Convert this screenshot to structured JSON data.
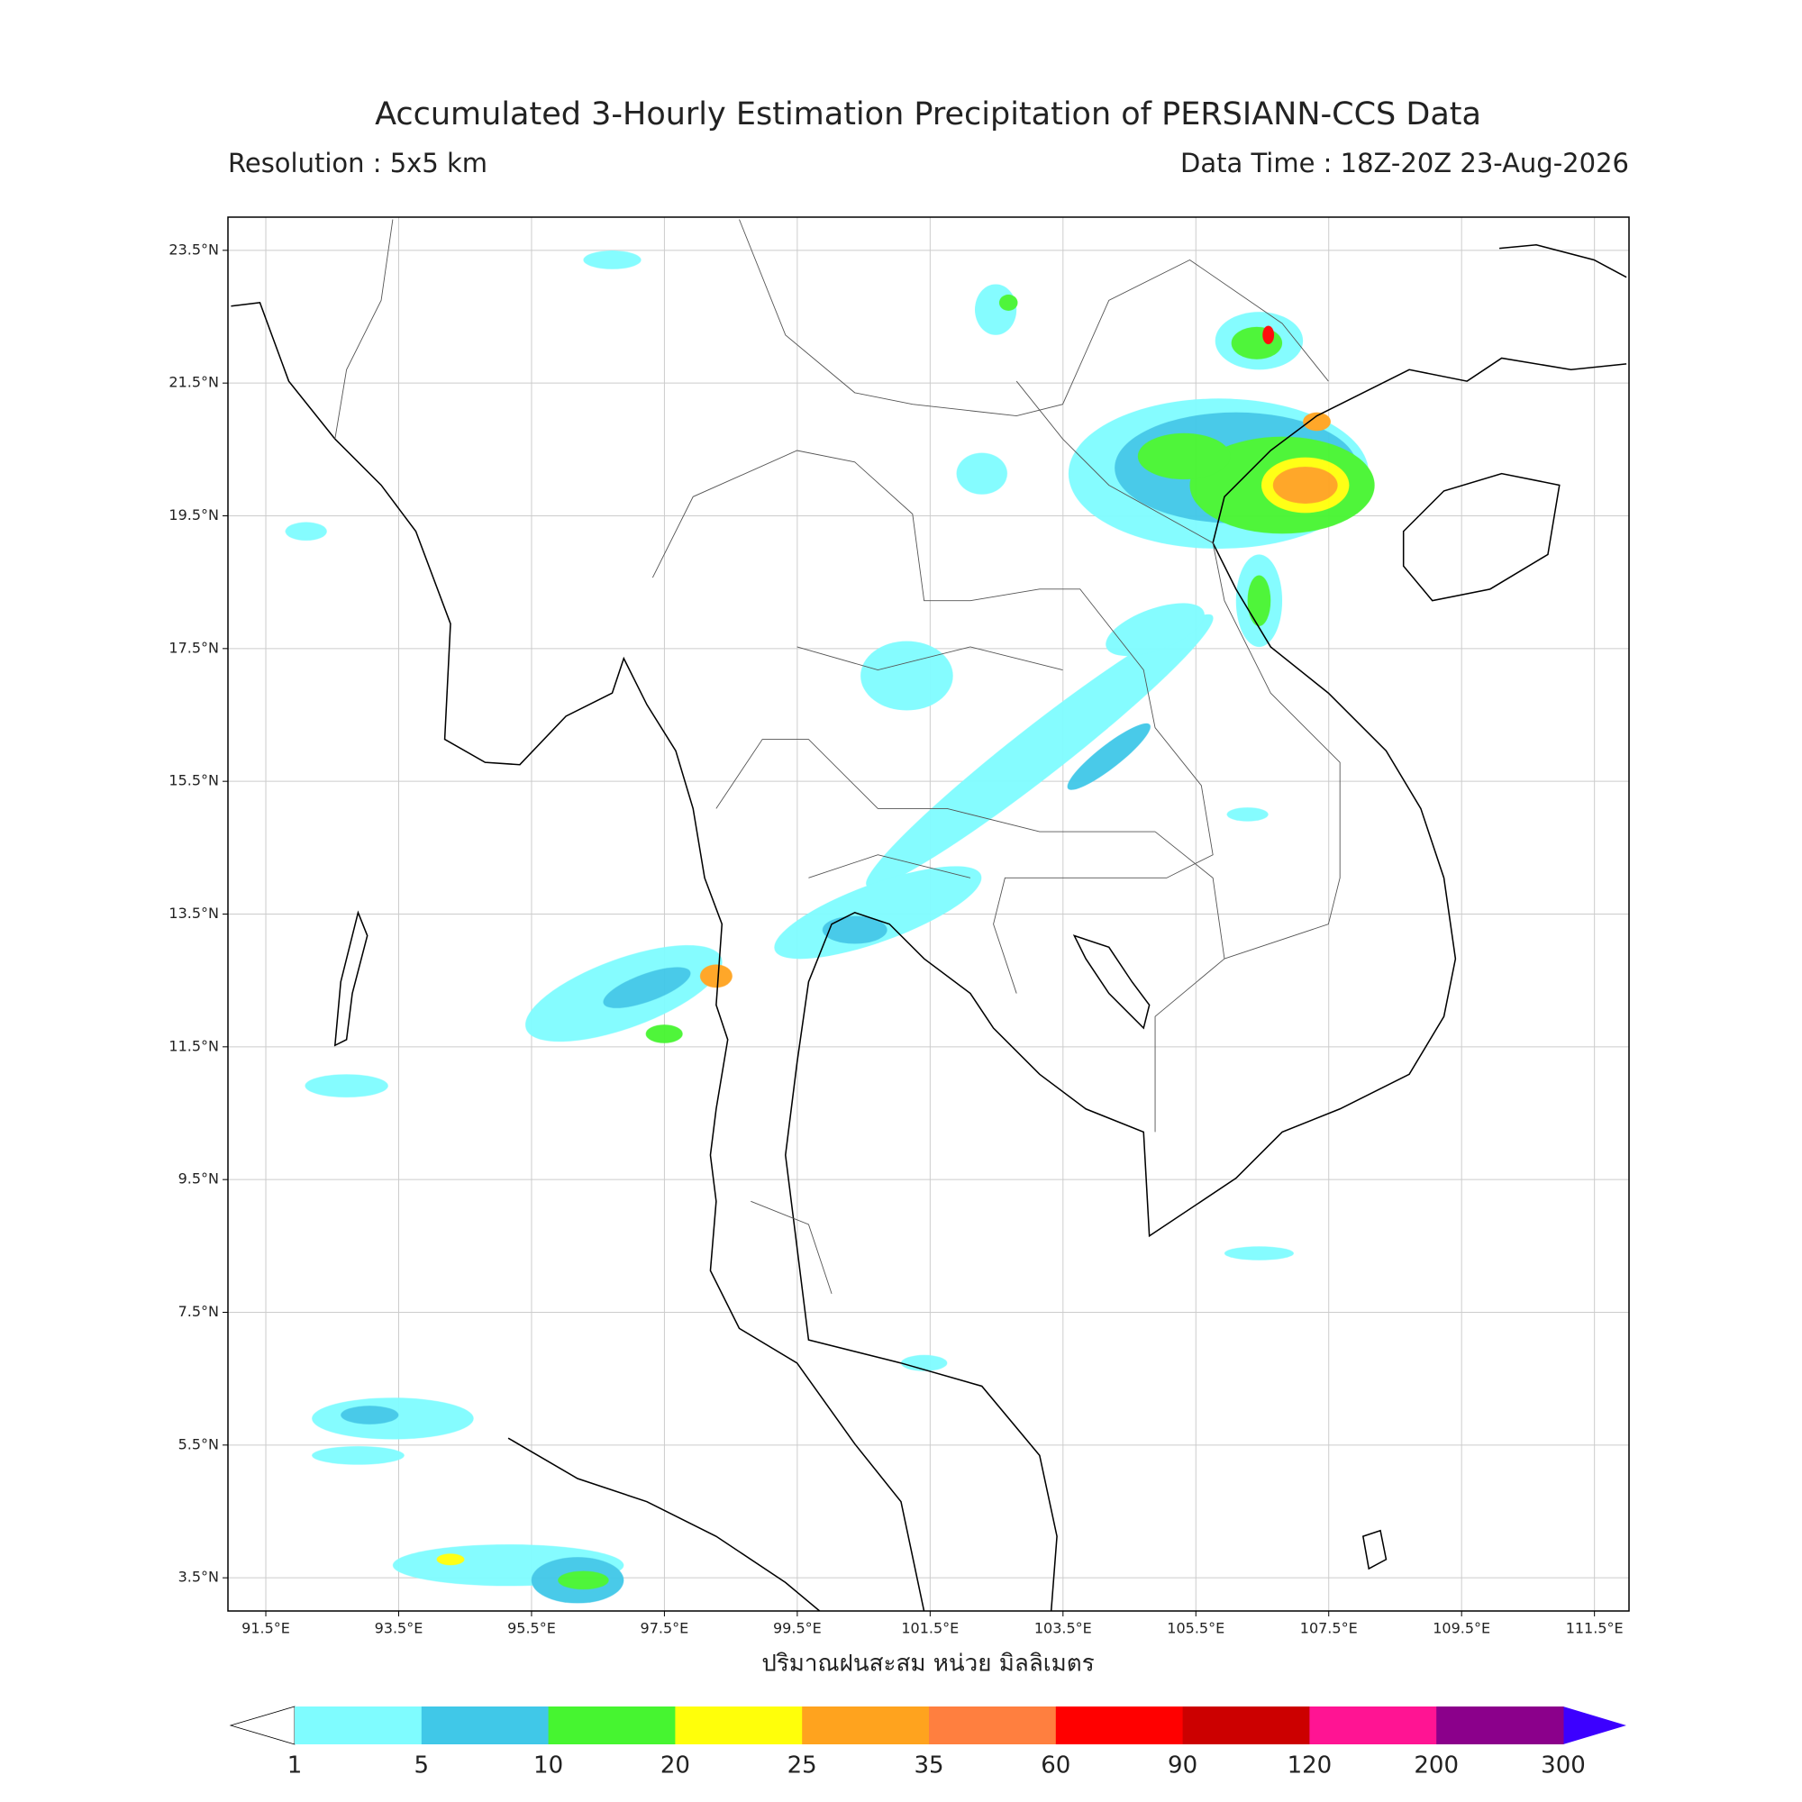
{
  "header": {
    "title": "Accumulated 3-Hourly Estimation Precipitation of PERSIANN-CCS Data",
    "resolution": "Resolution : 5x5 km",
    "data_time": "Data Time : 18Z-20Z 23-Aug-2026"
  },
  "map": {
    "xlim": [
      90.93,
      112.02
    ],
    "ylim": [
      3.0,
      24.0
    ],
    "grid": true,
    "xticks": [
      {
        "value": 91.5,
        "label": "91.5°E"
      },
      {
        "value": 93.5,
        "label": "93.5°E"
      },
      {
        "value": 95.5,
        "label": "95.5°E"
      },
      {
        "value": 97.5,
        "label": "97.5°E"
      },
      {
        "value": 99.5,
        "label": "99.5°E"
      },
      {
        "value": 101.5,
        "label": "101.5°E"
      },
      {
        "value": 103.5,
        "label": "103.5°E"
      },
      {
        "value": 105.5,
        "label": "105.5°E"
      },
      {
        "value": 107.5,
        "label": "107.5°E"
      },
      {
        "value": 109.5,
        "label": "109.5°E"
      },
      {
        "value": 111.5,
        "label": "111.5°E"
      }
    ],
    "yticks": [
      {
        "value": 3.5,
        "label": "3.5°N"
      },
      {
        "value": 5.5,
        "label": "5.5°N"
      },
      {
        "value": 7.5,
        "label": "7.5°N"
      },
      {
        "value": 9.5,
        "label": "9.5°N"
      },
      {
        "value": 11.5,
        "label": "11.5°N"
      },
      {
        "value": 13.5,
        "label": "13.5°N"
      },
      {
        "value": 15.5,
        "label": "15.5°N"
      },
      {
        "value": 17.5,
        "label": "17.5°N"
      },
      {
        "value": 19.5,
        "label": "19.5°N"
      },
      {
        "value": 21.5,
        "label": "21.5°N"
      },
      {
        "value": 23.5,
        "label": "23.5°N"
      }
    ],
    "xlabel": "ปริมาณฝนสะสม หน่วย มิลลิเมตร"
  },
  "colorbar": {
    "levels": [
      1,
      5,
      10,
      20,
      25,
      35,
      60,
      90,
      120,
      200,
      300
    ],
    "colors": [
      "#7ffcff",
      "#40c8e8",
      "#46f530",
      "#ffff0a",
      "#ffa31e",
      "#ff7f3f",
      "#ff0000",
      "#cc0000",
      "#ff1493",
      "#8b008b"
    ],
    "under_color": "#ffffff",
    "over_color": "#3c00ff"
  }
}
